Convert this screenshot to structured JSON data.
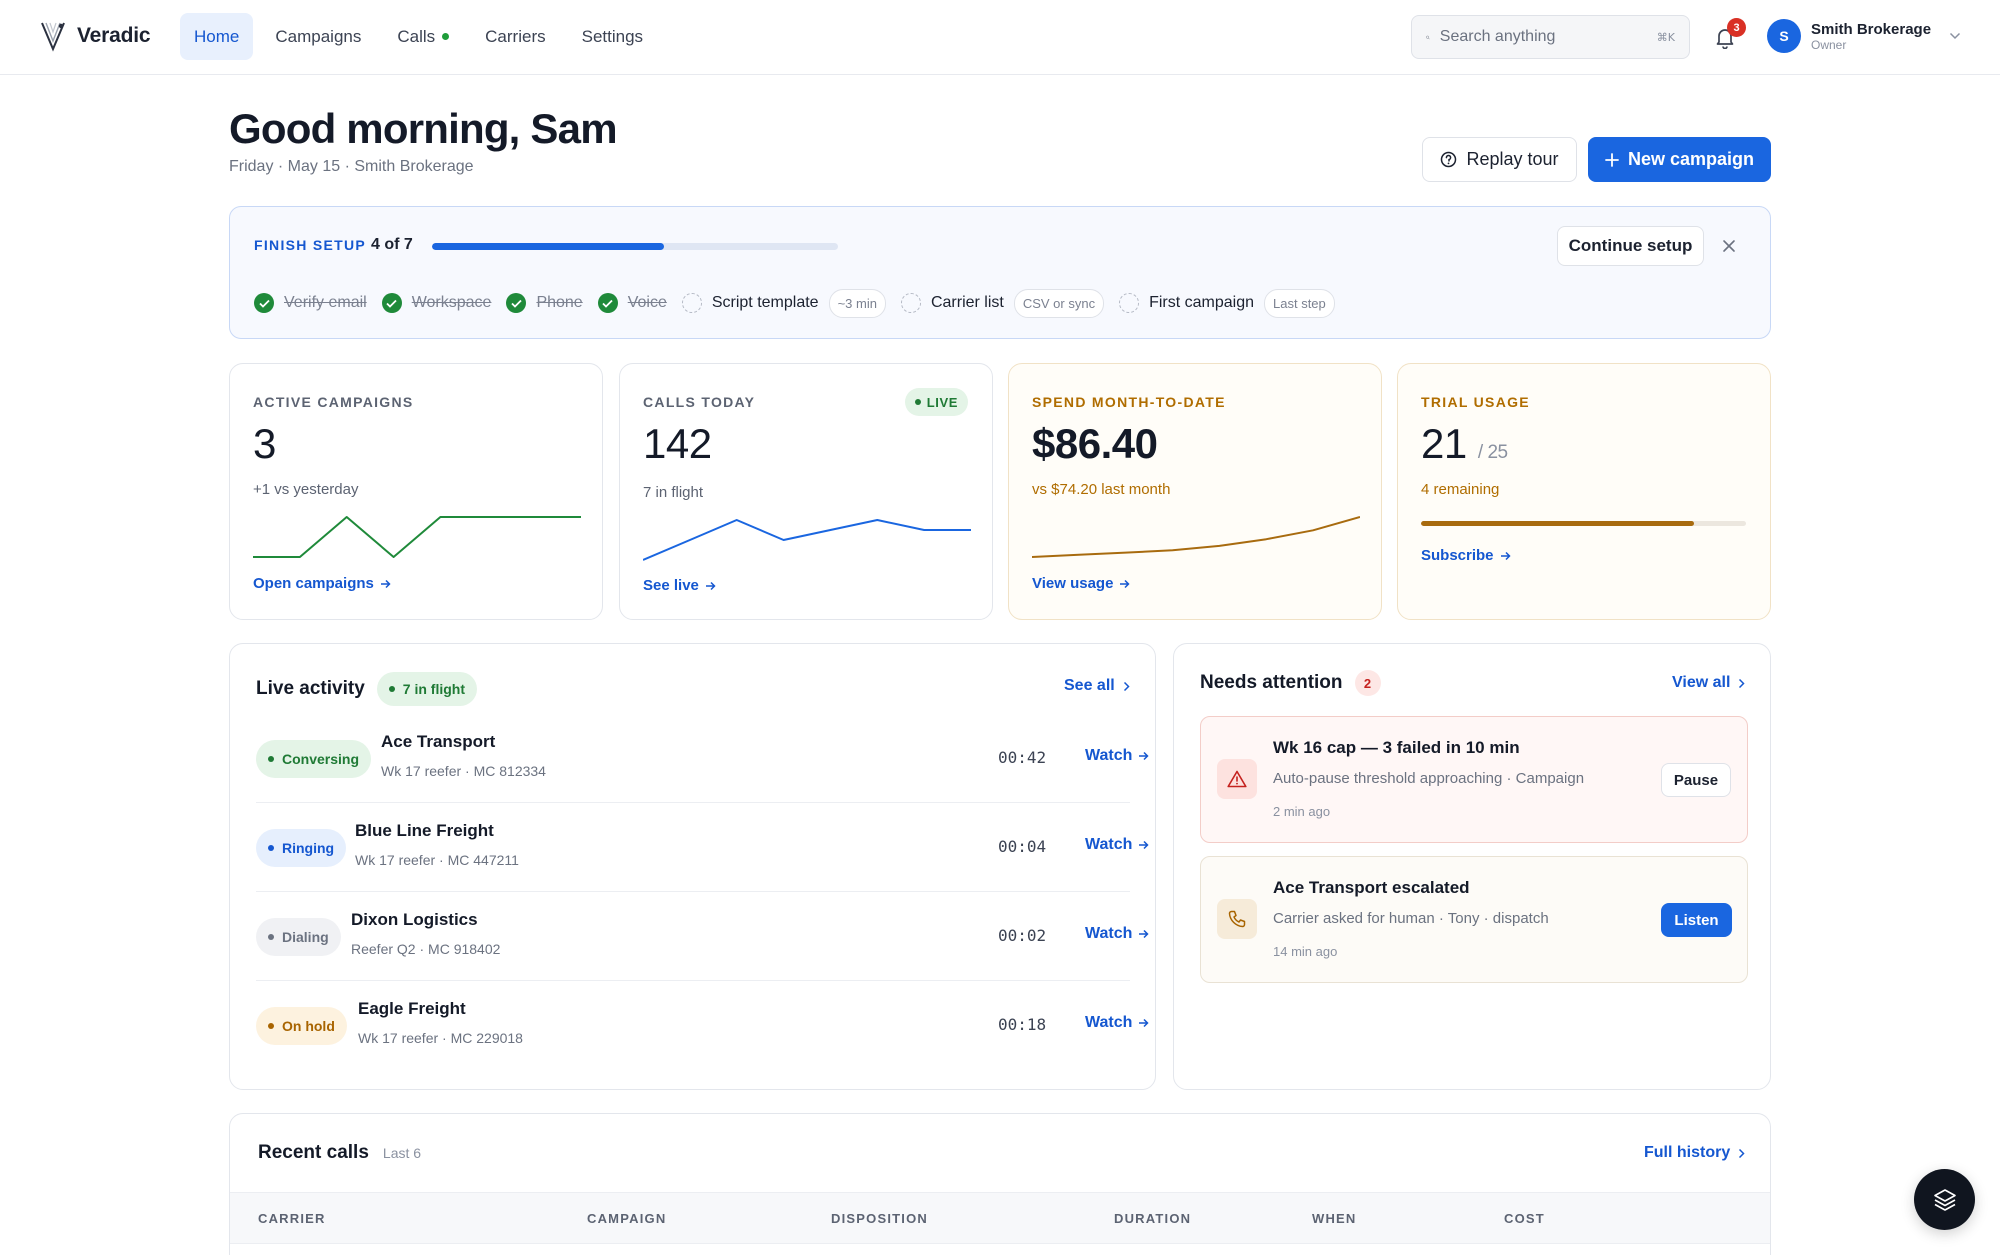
{
  "app": {
    "name": "Veradic"
  },
  "nav": {
    "items": [
      {
        "label": "Home",
        "active": true
      },
      {
        "label": "Campaigns"
      },
      {
        "label": "Calls",
        "live_indicator": true
      },
      {
        "label": "Carriers"
      },
      {
        "label": "Settings"
      }
    ]
  },
  "search": {
    "placeholder": "Search anything",
    "shortcut": "⌘K"
  },
  "notifications": {
    "count": "3"
  },
  "account": {
    "initial": "S",
    "name": "Smith Brokerage",
    "role": "Owner"
  },
  "header": {
    "greeting": "Good morning, Sam",
    "subtitle": "Friday · May 15 · Smith Brokerage",
    "replay_label": "Replay tour",
    "new_campaign_label": "New campaign"
  },
  "setup": {
    "title": "FINISH SETUP",
    "progress_text": "4 of 7",
    "progress_fraction": 0.5714,
    "continue_label": "Continue setup",
    "steps": [
      {
        "label": "Verify email",
        "done": true,
        "chip": ""
      },
      {
        "label": "Workspace",
        "done": true,
        "chip": ""
      },
      {
        "label": "Phone",
        "done": true,
        "chip": ""
      },
      {
        "label": "Voice",
        "done": true,
        "chip": ""
      },
      {
        "label": "Script template",
        "done": false,
        "chip": "~3 min"
      },
      {
        "label": "Carrier list",
        "done": false,
        "chip": "CSV or sync"
      },
      {
        "label": "First campaign",
        "done": false,
        "chip": "Last step"
      }
    ]
  },
  "metrics": {
    "active_campaigns": {
      "label": "ACTIVE CAMPAIGNS",
      "value": "3",
      "sub": "+1 vs yesterday",
      "link": "Open campaigns",
      "trend": [
        2,
        2,
        3,
        2,
        3,
        3,
        3,
        3
      ],
      "color": "#1f8a3a"
    },
    "calls_today": {
      "label": "CALLS TODAY",
      "badge": "LIVE",
      "value": "142",
      "sub": "7 in flight",
      "link": "See live",
      "trend": [
        4,
        6,
        8,
        6,
        7,
        8,
        7,
        7
      ],
      "color": "#1a66e0"
    },
    "spend": {
      "label": "SPEND MONTH-TO-DATE",
      "value": "$86.40",
      "sub": "vs $74.20 last month",
      "link": "View usage",
      "trend": [
        10,
        11,
        12,
        13,
        15,
        18,
        22,
        28
      ],
      "color": "#a86b0f"
    },
    "trial": {
      "label": "TRIAL USAGE",
      "value": "21",
      "total": "/ 25",
      "sub": "4 remaining",
      "link": "Subscribe",
      "fraction": 0.84,
      "color": "#a86b0f"
    }
  },
  "live_activity": {
    "title": "Live activity",
    "badge": "7 in flight",
    "see_all": "See all",
    "rows": [
      {
        "status": "Conversing",
        "carrier": "Ace Transport",
        "detail": "Wk 17 reefer · MC 812334",
        "time": "00:42",
        "action": "Watch"
      },
      {
        "status": "Ringing",
        "carrier": "Blue Line Freight",
        "detail": "Wk 17 reefer · MC 447211",
        "time": "00:04",
        "action": "Watch"
      },
      {
        "status": "Dialing",
        "carrier": "Dixon Logistics",
        "detail": "Reefer Q2 · MC 918402",
        "time": "00:02",
        "action": "Watch"
      },
      {
        "status": "On hold",
        "carrier": "Eagle Freight",
        "detail": "Wk 17 reefer · MC 229018",
        "time": "00:18",
        "action": "Watch"
      }
    ]
  },
  "attention": {
    "title": "Needs attention",
    "count": "2",
    "view_all": "View all",
    "items": [
      {
        "title": "Wk 16 cap — 3 failed in 10 min",
        "sub": "Auto-pause threshold approaching · Campaign",
        "time": "2 min ago",
        "action": "Pause"
      },
      {
        "title": "Ace Transport escalated",
        "sub": "Carrier asked for human · Tony · dispatch",
        "time": "14 min ago",
        "action": "Listen"
      }
    ]
  },
  "recent_calls": {
    "title": "Recent calls",
    "sub": "Last 6",
    "history": "Full history",
    "columns": [
      "CARRIER",
      "CAMPAIGN",
      "DISPOSITION",
      "DURATION",
      "WHEN",
      "COST"
    ]
  },
  "icons": {
    "logo": "veradic-logo-icon",
    "search": "search-icon",
    "bell": "bell-icon",
    "help": "help-circle-icon",
    "plus": "plus-icon",
    "close": "close-icon",
    "check": "check-icon",
    "arrow": "arrow-right-icon",
    "chevron": "chevron-right-icon",
    "warning": "warning-triangle-icon",
    "phone": "phone-icon",
    "layers": "layers-icon"
  }
}
